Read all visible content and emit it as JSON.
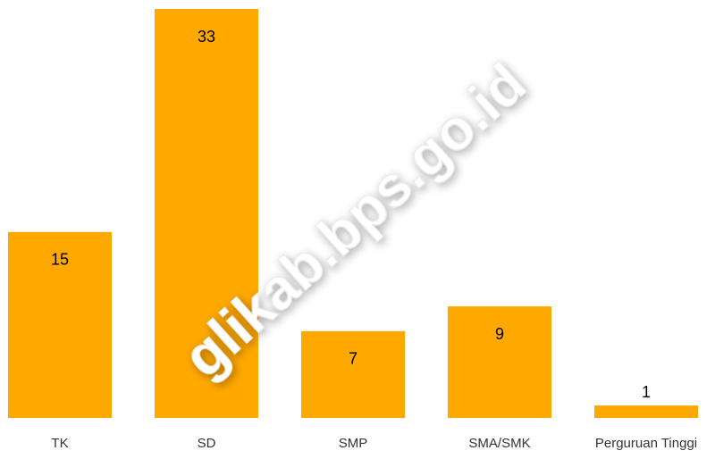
{
  "chart_data": {
    "type": "bar",
    "categories": [
      "TK",
      "SD",
      "SMP",
      "SMA/SMK",
      "Perguruan Tinggi"
    ],
    "values": [
      15,
      33,
      7,
      9,
      1
    ],
    "color": "#ffa800",
    "watermark": "glikab.bps.go.id"
  }
}
